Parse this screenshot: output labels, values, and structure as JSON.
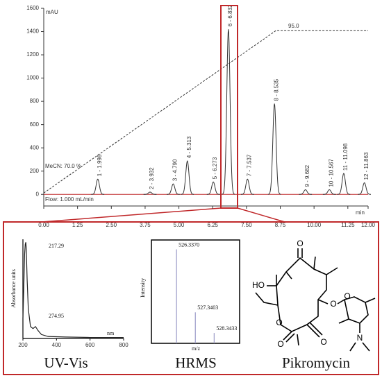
{
  "chart_data": [
    {
      "type": "peaks",
      "y_unit_label": "mAU",
      "x_unit_label": "min",
      "annotations": [
        "MeCN: 70.0 %",
        "95.0",
        "Flow: 1.000 mL/min"
      ],
      "x": [
        1.998,
        3.932,
        4.79,
        5.313,
        6.273,
        6.832,
        7.537,
        8.535,
        9.682,
        10.567,
        11.098,
        11.863
      ],
      "values": [
        131,
        20,
        90,
        287,
        107,
        1420,
        131,
        780,
        40,
        40,
        180,
        100
      ],
      "peak_labels": [
        "1 - 1.998",
        "2 - 3.932",
        "3 - 4.790",
        "4 - 5.313",
        "5 - 6.273",
        "6 - 6.832",
        "7 - 7.537",
        "8 - 8.535",
        "9 - 9.682",
        "10 - 10.567",
        "11 - 11.098",
        "12 - 11.863"
      ],
      "color": "#333333",
      "xlim": [
        0,
        12
      ],
      "xticks": [
        {
          "value": 0,
          "label": "0.00"
        },
        {
          "value": 1.25,
          "label": "1.25"
        },
        {
          "value": 2.5,
          "label": "2.50"
        },
        {
          "value": 3.75,
          "label": "3.75"
        },
        {
          "value": 5,
          "label": "5.00"
        },
        {
          "value": 6.25,
          "label": "6.25"
        },
        {
          "value": 7.5,
          "label": "7.50"
        },
        {
          "value": 8.75,
          "label": "8.75"
        },
        {
          "value": 10,
          "label": "10.00"
        },
        {
          "value": 11.25,
          "label": "11.25"
        },
        {
          "value": 12,
          "label": "12.00"
        }
      ],
      "ylim": [
        -100,
        1600
      ],
      "yticks": [
        0,
        200,
        400,
        600,
        800,
        1000,
        1200,
        1400,
        1600
      ],
      "gradient": {
        "x": [
          0,
          8.6,
          12
        ],
        "values": [
          70,
          95,
          95
        ],
        "axis": "y2",
        "color": "#333333"
      },
      "y2lim": [
        68,
        98.4
      ]
    },
    {
      "type": "line",
      "y_label": "Absorbance units",
      "x_label": "nm",
      "annotations": [
        "217.29",
        "274.95"
      ],
      "x": [
        200,
        205,
        210,
        214,
        217.29,
        220,
        225,
        232,
        245,
        260,
        274.95,
        290,
        310,
        350,
        450,
        600,
        800
      ],
      "values": [
        0.2,
        0.5,
        0.85,
        0.95,
        0.97,
        0.9,
        0.6,
        0.3,
        0.12,
        0.1,
        0.12,
        0.08,
        0.04,
        0.02,
        0.015,
        0.01,
        0.01
      ],
      "color": "#222222",
      "xlim": [
        200,
        800
      ],
      "xticks": [
        200,
        400,
        600,
        800
      ],
      "ylim": [
        0,
        1
      ]
    },
    {
      "type": "stick",
      "y_label": "Intensity",
      "x_label": "m/z",
      "x": [
        526.337,
        527.3403,
        528.3433
      ],
      "x_labels": [
        "526.3370",
        "527.3403",
        "528.3433"
      ],
      "values": [
        100,
        33,
        11
      ],
      "color": "#9a9ac8",
      "xlim": [
        525,
        529.7
      ],
      "ylim": [
        0,
        110
      ]
    }
  ],
  "panels": {
    "captions": [
      "UV-Vis",
      "HRMS",
      "Pikromycin"
    ]
  },
  "molecule": {
    "atom_labels": [
      "O",
      "HO",
      "O",
      "O",
      "O",
      "O",
      "O",
      "N"
    ]
  }
}
